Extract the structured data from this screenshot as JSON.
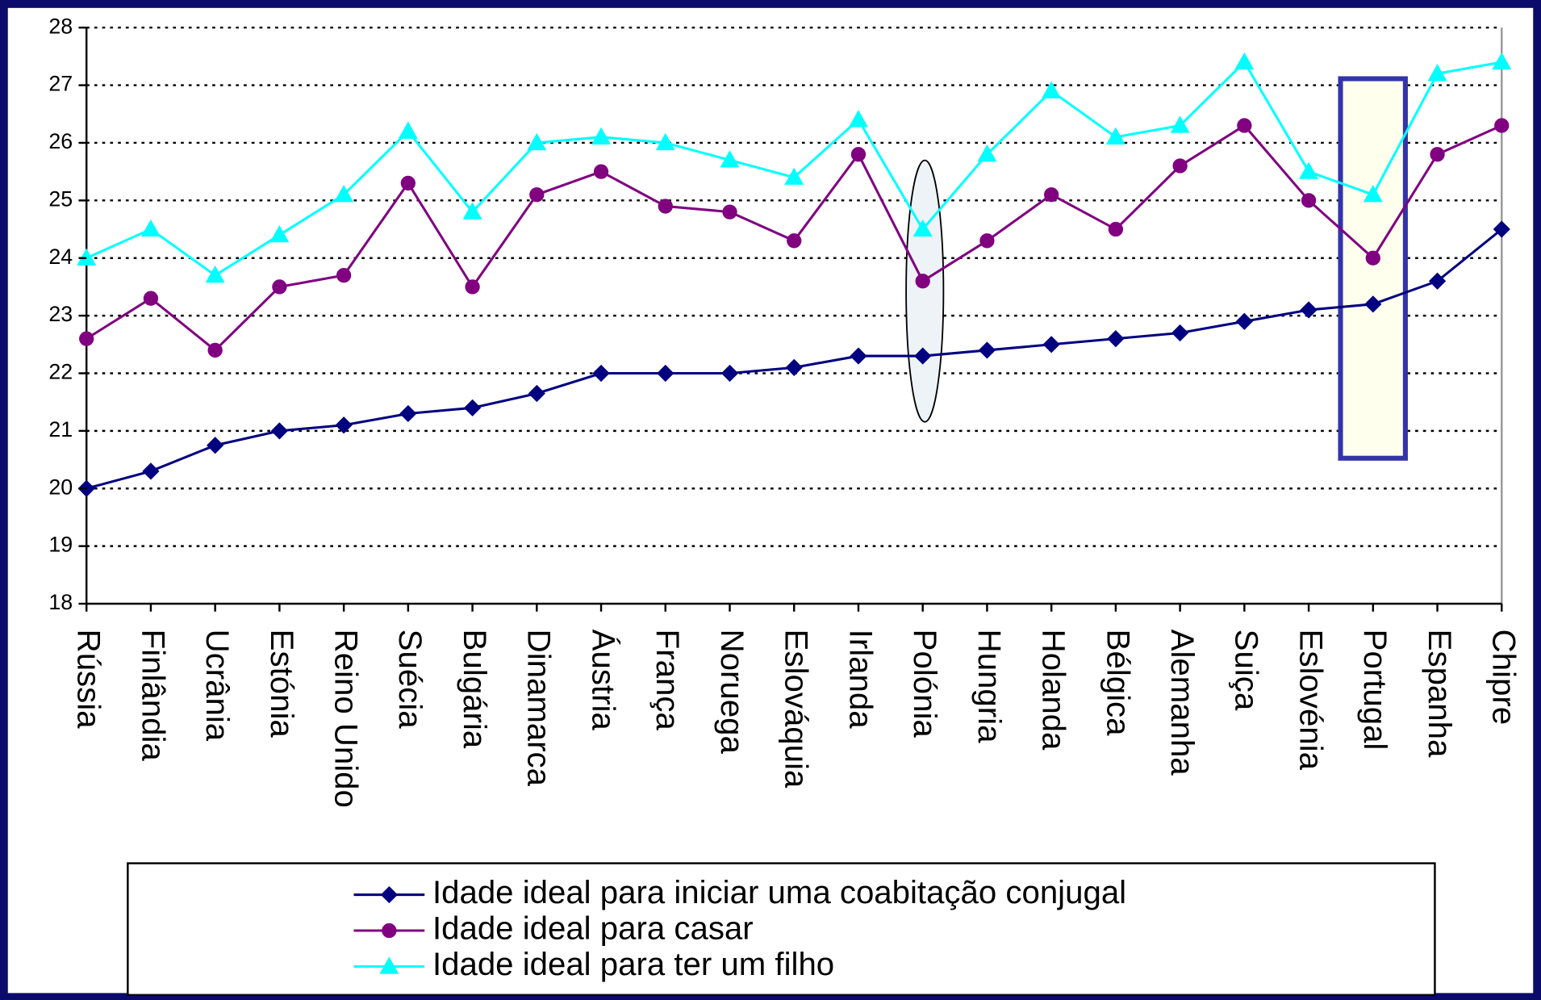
{
  "chart_data": {
    "type": "line",
    "categories": [
      "Rússia",
      "Finlândia",
      "Ucrânia",
      "Estónia",
      "Reino Unido",
      "Suécia",
      "Bulgária",
      "Dinamarca",
      "Áustria",
      "França",
      "Noruega",
      "Eslováquia",
      "Irlanda",
      "Polónia",
      "Hungria",
      "Holanda",
      "Bélgica",
      "Alemanha",
      "Suiça",
      "Eslovénia",
      "Portugal",
      "Espanha",
      "Chipre"
    ],
    "series": [
      {
        "name": "Idade ideal para iniciar uma coabitação conjugal",
        "color": "#000080",
        "values": [
          20.0,
          20.3,
          20.75,
          21.0,
          21.1,
          21.3,
          21.4,
          21.65,
          22.0,
          22.0,
          22.0,
          22.1,
          22.3,
          22.3,
          22.4,
          22.5,
          22.6,
          22.7,
          22.9,
          23.1,
          23.2,
          23.6,
          24.5
        ]
      },
      {
        "name": "Idade ideal para casar",
        "color": "#800080",
        "values": [
          22.6,
          23.3,
          22.4,
          23.5,
          23.7,
          25.3,
          23.5,
          25.1,
          25.5,
          24.9,
          24.8,
          24.3,
          25.8,
          23.6,
          24.3,
          25.1,
          24.5,
          25.6,
          26.3,
          25.0,
          24.0,
          25.8,
          26.3
        ]
      },
      {
        "name": "Idade ideal para ter um filho",
        "color": "#00ffff",
        "values": [
          24.0,
          24.5,
          23.7,
          24.4,
          25.1,
          26.2,
          24.8,
          26.0,
          26.1,
          26.0,
          25.7,
          25.4,
          26.4,
          24.5,
          25.8,
          26.9,
          26.1,
          26.3,
          27.4,
          25.5,
          25.1,
          27.2,
          27.4
        ]
      }
    ],
    "ylim": [
      18,
      28
    ],
    "yticks": [
      18,
      19,
      20,
      21,
      22,
      23,
      24,
      25,
      26,
      27,
      28
    ],
    "grid": true
  }
}
